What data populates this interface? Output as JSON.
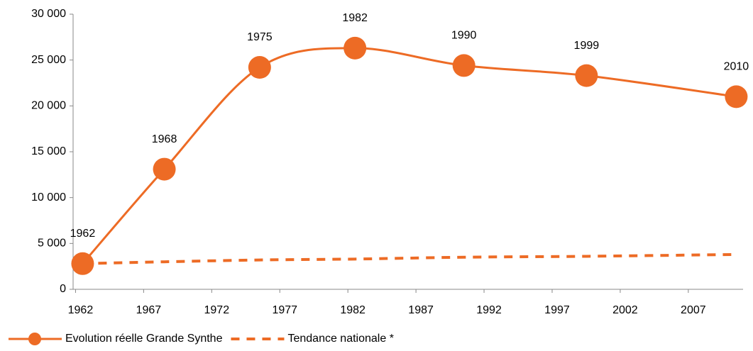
{
  "chart_data": {
    "type": "line",
    "x": [
      1962,
      1968,
      1975,
      1982,
      1990,
      1999,
      2010
    ],
    "series": [
      {
        "name": "Evolution réelle Grande Synthe",
        "color": "#ed6b25",
        "style": "solid",
        "markers": true,
        "values": [
          2800,
          13100,
          24200,
          26300,
          24400,
          23300,
          21000
        ]
      },
      {
        "name": "Tendance nationale *",
        "color": "#ed6b25",
        "style": "dashed",
        "markers": false,
        "values": [
          2800,
          3000,
          3200,
          3300,
          3500,
          3600,
          3800
        ]
      }
    ],
    "xlim": [
      1961.3,
      2010.5
    ],
    "xticks": [
      1962,
      1967,
      1972,
      1977,
      1982,
      1987,
      1992,
      1997,
      2002,
      2007
    ],
    "ylim": [
      0,
      30000
    ],
    "yticks": [
      0,
      {
        "value": 5000,
        "label": "5 000"
      },
      {
        "value": 10000,
        "label": "10 000"
      },
      {
        "value": 15000,
        "label": "15 000"
      },
      {
        "value": 20000,
        "label": "20 000"
      },
      {
        "value": 25000,
        "label": "25 000"
      },
      {
        "value": 30000,
        "label": "30 000"
      }
    ],
    "smooth": true,
    "point_labels": true
  }
}
